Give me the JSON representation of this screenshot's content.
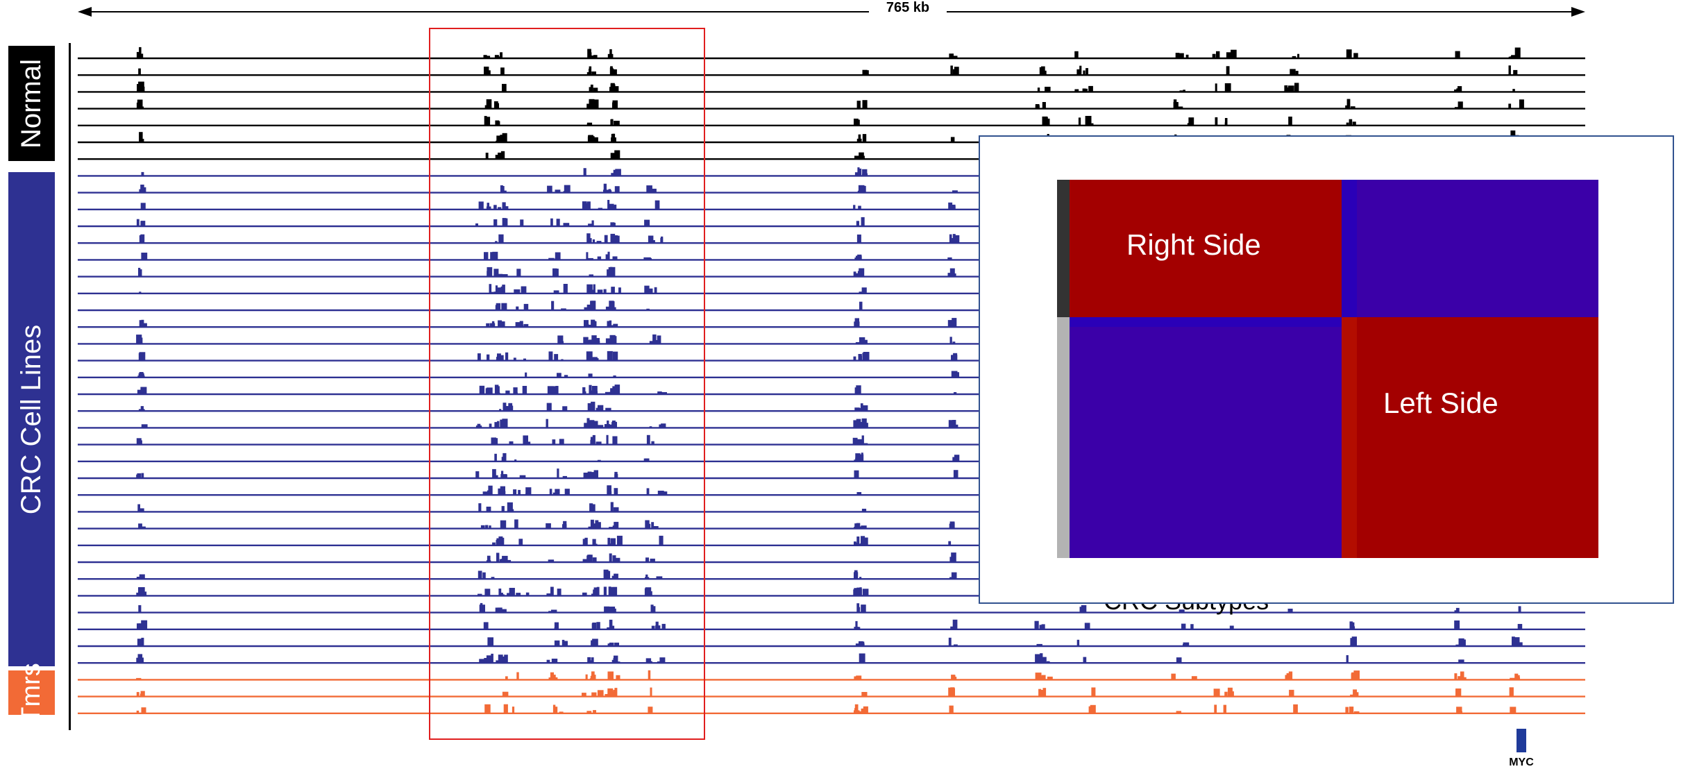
{
  "scale": {
    "label": "765 kb"
  },
  "groups": [
    {
      "id": "normal",
      "label": "Normal",
      "color": "#000000",
      "track_color": "#000000",
      "rows": 7
    },
    {
      "id": "crc",
      "label": "CRC Cell Lines",
      "color": "#2e3192",
      "track_color": "#2e3192",
      "rows": 30
    },
    {
      "id": "tmrs",
      "label": "Tmrs",
      "color": "#f26a36",
      "track_color": "#f26a36",
      "rows": 3
    }
  ],
  "gene": {
    "label": "MYC"
  },
  "inset": {
    "caption": "CRC Subtypes",
    "quadrants": [
      {
        "label": "Right Side",
        "color": "#a30000"
      },
      {
        "label": "",
        "color": "#3b00a8"
      },
      {
        "label": "",
        "color": "#3b00a8"
      },
      {
        "label": "Left Side",
        "color": "#a30000"
      }
    ],
    "side_colors": [
      "#333333",
      "#b3b3b3"
    ]
  }
}
